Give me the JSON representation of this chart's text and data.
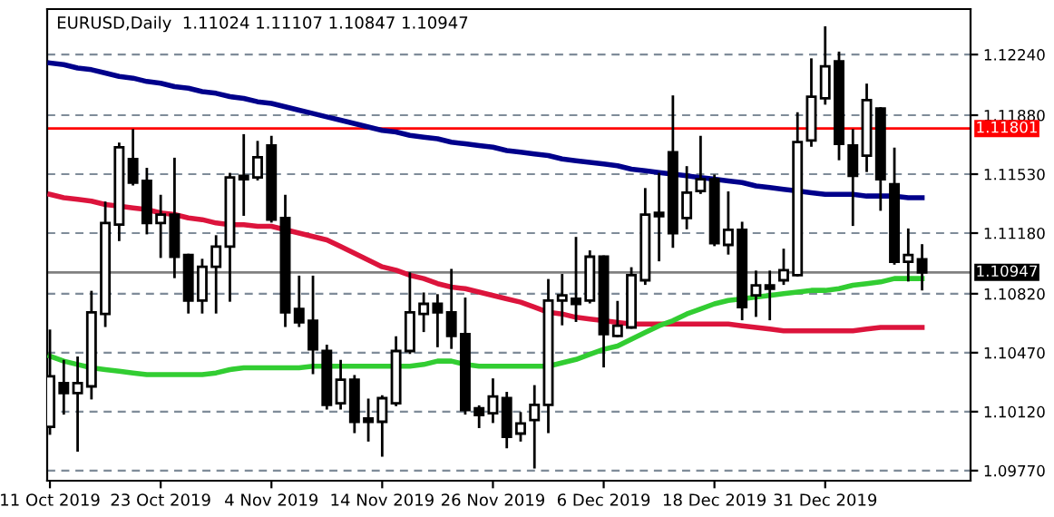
{
  "chart_data": {
    "type": "candlestick",
    "title": "EURUSD,Daily  1.11024 1.11107 1.10847 1.10947",
    "categories": [
      "11 Oct 2019",
      null,
      null,
      null,
      null,
      null,
      null,
      null,
      "23 Oct 2019",
      null,
      null,
      null,
      null,
      null,
      null,
      null,
      "4 Nov 2019",
      null,
      null,
      null,
      null,
      null,
      null,
      null,
      "14 Nov 2019",
      null,
      null,
      null,
      null,
      null,
      null,
      null,
      "26 Nov 2019",
      null,
      null,
      null,
      null,
      null,
      null,
      null,
      "6 Dec 2019",
      null,
      null,
      null,
      null,
      null,
      null,
      null,
      "18 Dec 2019",
      null,
      null,
      null,
      null,
      null,
      null,
      null,
      "31 Dec 2019",
      null,
      null,
      null,
      null,
      null,
      null,
      null
    ],
    "ohlc": [
      [
        1.1003,
        1.106,
        1.0999,
        1.1033
      ],
      [
        1.1029,
        1.1042,
        1.1011,
        1.1023
      ],
      [
        1.1023,
        1.1044,
        1.0989,
        1.1029
      ],
      [
        1.1027,
        1.1083,
        1.102,
        1.1071
      ],
      [
        1.107,
        1.1136,
        1.1063,
        1.1124
      ],
      [
        1.1123,
        1.1171,
        1.1114,
        1.1169
      ],
      [
        1.1162,
        1.1179,
        1.1147,
        1.1148
      ],
      [
        1.1149,
        1.1156,
        1.1118,
        1.1124
      ],
      [
        1.1124,
        1.114,
        1.1104,
        1.1129
      ],
      [
        1.1129,
        1.1162,
        1.1092,
        1.1104
      ],
      [
        1.1105,
        1.1105,
        1.1071,
        1.1078
      ],
      [
        1.1078,
        1.1102,
        1.1071,
        1.1098
      ],
      [
        1.1098,
        1.1116,
        1.1071,
        1.111
      ],
      [
        1.111,
        1.1153,
        1.1078,
        1.1151
      ],
      [
        1.1152,
        1.1176,
        1.1129,
        1.115
      ],
      [
        1.1151,
        1.1172,
        1.115,
        1.1163
      ],
      [
        1.117,
        1.1175,
        1.1125,
        1.1126
      ],
      [
        1.1127,
        1.114,
        1.1063,
        1.1071
      ],
      [
        1.1073,
        1.1092,
        1.1063,
        1.1065
      ],
      [
        1.1066,
        1.1092,
        1.1035,
        1.1049
      ],
      [
        1.1048,
        1.1051,
        1.1014,
        1.1016
      ],
      [
        1.1017,
        1.1042,
        1.1014,
        1.1031
      ],
      [
        1.1031,
        1.1033,
        1.1,
        1.1006
      ],
      [
        1.1008,
        1.1019,
        1.0995,
        1.1006
      ],
      [
        1.1006,
        1.1021,
        1.0986,
        1.102
      ],
      [
        1.1017,
        1.1056,
        1.1016,
        1.1048
      ],
      [
        1.1048,
        1.1094,
        1.1047,
        1.1071
      ],
      [
        1.107,
        1.1082,
        1.106,
        1.1076
      ],
      [
        1.1076,
        1.1081,
        1.1051,
        1.1071
      ],
      [
        1.1071,
        1.1096,
        1.105,
        1.1057
      ],
      [
        1.1058,
        1.1079,
        1.1011,
        1.1013
      ],
      [
        1.1014,
        1.1015,
        1.1003,
        1.101
      ],
      [
        1.1011,
        1.1031,
        1.1006,
        1.1021
      ],
      [
        1.102,
        1.1023,
        1.0991,
        1.0997
      ],
      [
        1.0999,
        1.1011,
        1.0995,
        1.1005
      ],
      [
        1.1007,
        1.1027,
        1.0979,
        1.1016
      ],
      [
        1.1016,
        1.109,
        1.1,
        1.1078
      ],
      [
        1.1078,
        1.1093,
        1.1064,
        1.1081
      ],
      [
        1.1079,
        1.1115,
        1.1066,
        1.1076
      ],
      [
        1.1078,
        1.1107,
        1.1077,
        1.1104
      ],
      [
        1.1104,
        1.1104,
        1.1039,
        1.1058
      ],
      [
        1.1057,
        1.1077,
        1.1057,
        1.1063
      ],
      [
        1.1062,
        1.1097,
        1.1062,
        1.1093
      ],
      [
        1.109,
        1.1144,
        1.1088,
        1.1129
      ],
      [
        1.113,
        1.1153,
        1.1102,
        1.1128
      ],
      [
        1.1166,
        1.1199,
        1.111,
        1.1118
      ],
      [
        1.1127,
        1.1157,
        1.1121,
        1.1142
      ],
      [
        1.1143,
        1.1175,
        1.1142,
        1.115
      ],
      [
        1.115,
        1.1152,
        1.1111,
        1.1112
      ],
      [
        1.1111,
        1.1142,
        1.1106,
        1.112
      ],
      [
        1.112,
        1.1124,
        1.1067,
        1.1074
      ],
      [
        1.1081,
        1.1095,
        1.1069,
        1.1087
      ],
      [
        1.1087,
        1.1095,
        1.1067,
        1.1085
      ],
      [
        1.109,
        1.1108,
        1.1088,
        1.1096
      ],
      [
        1.1093,
        1.1189,
        1.1093,
        1.1172
      ],
      [
        1.1173,
        1.1221,
        1.117,
        1.1199
      ],
      [
        1.1198,
        1.124,
        1.1195,
        1.1217
      ],
      [
        1.122,
        1.1225,
        1.1162,
        1.1171
      ],
      [
        1.117,
        1.1179,
        1.1123,
        1.1152
      ],
      [
        1.1164,
        1.1206,
        1.1155,
        1.1197
      ],
      [
        1.1192,
        1.1192,
        1.1132,
        1.115
      ],
      [
        1.1147,
        1.1168,
        1.11,
        1.1101
      ],
      [
        1.1101,
        1.112,
        1.109,
        1.1105
      ],
      [
        1.11024,
        1.11107,
        1.10847,
        1.10947
      ]
    ],
    "series": [
      {
        "type": "line",
        "color": "#00008b",
        "values": [
          1.1219,
          1.1218,
          1.1216,
          1.1215,
          1.1213,
          1.1211,
          1.121,
          1.1208,
          1.1207,
          1.1205,
          1.1204,
          1.1202,
          1.1201,
          1.1199,
          1.1198,
          1.1196,
          1.1195,
          1.1193,
          1.1191,
          1.1189,
          1.1187,
          1.1185,
          1.1183,
          1.1181,
          1.1179,
          1.1178,
          1.1176,
          1.1175,
          1.1174,
          1.1172,
          1.1171,
          1.117,
          1.1169,
          1.1167,
          1.1166,
          1.1165,
          1.1164,
          1.1162,
          1.1161,
          1.116,
          1.1159,
          1.1158,
          1.1156,
          1.1155,
          1.1154,
          1.1153,
          1.1152,
          1.1151,
          1.115,
          1.1149,
          1.1148,
          1.1146,
          1.1145,
          1.1144,
          1.1143,
          1.1142,
          1.1141,
          1.1141,
          1.1141,
          1.114,
          1.114,
          1.114,
          1.1139,
          1.1139
        ]
      },
      {
        "type": "line",
        "color": "#dc143c",
        "values": [
          1.1141,
          1.1139,
          1.1138,
          1.1137,
          1.1135,
          1.1134,
          1.1133,
          1.1132,
          1.113,
          1.1129,
          1.1127,
          1.1126,
          1.1124,
          1.1123,
          1.1123,
          1.1122,
          1.1122,
          1.112,
          1.1118,
          1.1116,
          1.1114,
          1.111,
          1.1106,
          1.1102,
          1.1098,
          1.1096,
          1.1093,
          1.1091,
          1.1088,
          1.1086,
          1.1085,
          1.1083,
          1.1081,
          1.1079,
          1.1077,
          1.1074,
          1.1071,
          1.107,
          1.1068,
          1.1067,
          1.1066,
          1.1065,
          1.1064,
          1.1064,
          1.1064,
          1.1064,
          1.1064,
          1.1064,
          1.1064,
          1.1064,
          1.1063,
          1.1062,
          1.1061,
          1.106,
          1.106,
          1.106,
          1.106,
          1.106,
          1.106,
          1.1061,
          1.1062,
          1.1062,
          1.1062,
          1.1062
        ]
      },
      {
        "type": "line",
        "color": "#32cd32",
        "values": [
          1.1045,
          1.1042,
          1.104,
          1.1038,
          1.1037,
          1.1036,
          1.1035,
          1.1034,
          1.1034,
          1.1034,
          1.1034,
          1.1034,
          1.1035,
          1.1037,
          1.1038,
          1.1038,
          1.1038,
          1.1038,
          1.1038,
          1.1039,
          1.1039,
          1.1039,
          1.1039,
          1.1039,
          1.1039,
          1.1039,
          1.1039,
          1.104,
          1.1042,
          1.1042,
          1.104,
          1.1039,
          1.1039,
          1.1039,
          1.1039,
          1.1039,
          1.1039,
          1.1041,
          1.1043,
          1.1046,
          1.1049,
          1.1051,
          1.1055,
          1.1059,
          1.1063,
          1.1066,
          1.107,
          1.1073,
          1.1076,
          1.1078,
          1.1079,
          1.108,
          1.1081,
          1.1082,
          1.1083,
          1.1084,
          1.1084,
          1.1085,
          1.1087,
          1.1088,
          1.1089,
          1.1091,
          1.1091,
          1.1091
        ]
      }
    ],
    "ylim": [
      1.0971,
      1.1251
    ],
    "yticks": [
      {
        "value": 1.0977,
        "label": "1.09770"
      },
      {
        "value": 1.1012,
        "label": "1.10120"
      },
      {
        "value": 1.1047,
        "label": "1.10470"
      },
      {
        "value": 1.1082,
        "label": "1.10820"
      },
      {
        "value": 1.1118,
        "label": "1.11180"
      },
      {
        "value": 1.1153,
        "label": "1.11530"
      },
      {
        "value": 1.1188,
        "label": "1.11880"
      },
      {
        "value": 1.1224,
        "label": "1.12240"
      }
    ],
    "ref_lines": [
      {
        "axis": "y",
        "value": 1.11801,
        "label": "1.11801",
        "color": "#ff0000"
      },
      {
        "axis": "y",
        "value": 1.10947,
        "label": "1.10947",
        "color": "#808080"
      }
    ],
    "grid": true
  }
}
